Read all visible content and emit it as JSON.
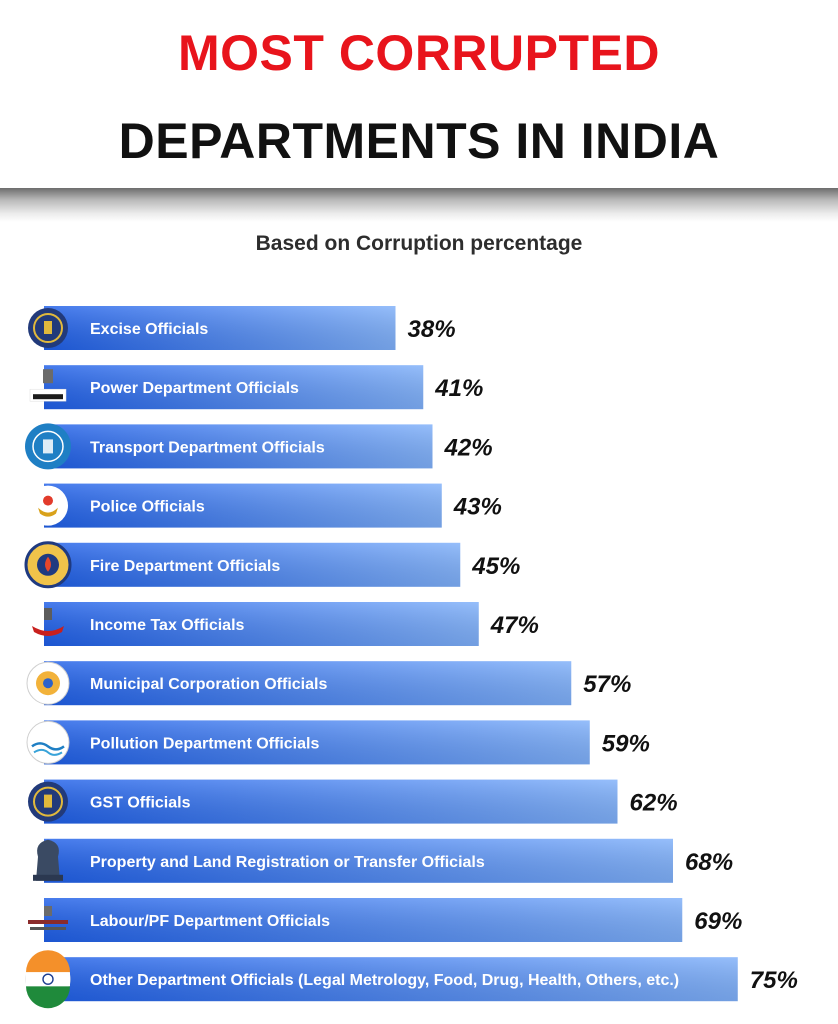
{
  "header": {
    "line1": "MOST CORRUPTED",
    "line2": "DEPARTMENTS IN INDIA"
  },
  "colors": {
    "title_red": "#e8141c",
    "bar_start": "#1f5fe8",
    "bar_end": "#7fb0fa",
    "label": "#ffffff",
    "value": "#111111"
  },
  "chart_data": {
    "type": "bar",
    "orientation": "horizontal",
    "subtitle": "Based on Corruption percentage",
    "categories": [
      "Excise Officials",
      "Power Department Officials",
      "Transport Department Officials",
      "Police Officials",
      "Fire Department Officials",
      "Income Tax Officials",
      "Municipal Corporation Officials",
      "Pollution Department Officials",
      "GST Officials",
      "Property and Land Registration or Transfer Officials",
      "Labour/PF Department Officials",
      "Other Department Officials (Legal Metrology, Food, Drug, Health, Others, etc.)"
    ],
    "values": [
      38,
      41,
      42,
      43,
      45,
      47,
      57,
      59,
      62,
      68,
      69,
      75
    ],
    "value_labels": [
      "38%",
      "41%",
      "42%",
      "43%",
      "45%",
      "47%",
      "57%",
      "59%",
      "62%",
      "68%",
      "69%",
      "75%"
    ],
    "icons": [
      "emblem-seal-icon",
      "ministry-of-power-logo-icon",
      "transport-seal-icon",
      "police-badge-icon",
      "fire-service-seal-icon",
      "income-tax-logo-icon",
      "municipal-corporation-seal-icon",
      "pollution-board-logo-icon",
      "gst-seal-icon",
      "ashoka-lion-capital-icon",
      "labour-ministry-logo-icon",
      "india-flag-icon"
    ],
    "ylabel": "",
    "xlabel": "",
    "grid": false,
    "legend": "none"
  }
}
